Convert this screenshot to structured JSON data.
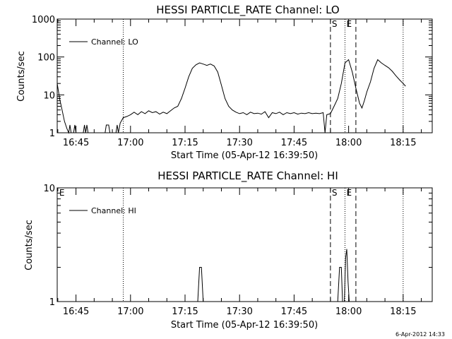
{
  "chart_data": [
    {
      "type": "line",
      "title": "HESSI PARTICLE_RATE Channel: LO",
      "xlabel": "Start Time (05-Apr-12 16:39:50)",
      "ylabel": "Counts/sec",
      "yscale": "log",
      "ylim": [
        1,
        1000
      ],
      "y_ticks": [
        "1",
        "10",
        "100",
        "1000"
      ],
      "xlim": [
        "16:39:50",
        "18:23:00"
      ],
      "x_ticks": [
        "16:45",
        "17:00",
        "17:15",
        "17:30",
        "17:45",
        "18:00",
        "18:15"
      ],
      "legend": {
        "entries": [
          "Channel: LO"
        ],
        "placement": "top-left"
      },
      "grid": false,
      "dotted_lines_x": [
        "16:58:00",
        "17:59:00",
        "18:15:00"
      ],
      "dashed_lines_x": [
        "17:55:00",
        "18:02:00"
      ],
      "markers": [
        {
          "label": "S",
          "x": "17:55:00"
        },
        {
          "label": "E",
          "x": "17:59:00"
        }
      ],
      "series": [
        {
          "name": "Channel: LO",
          "points": [
            [
              "16:39:50",
              20
            ],
            [
              "16:40:30",
              8
            ],
            [
              "16:41:10",
              4
            ],
            [
              "16:41:50",
              2
            ],
            [
              "16:42:30",
              1.3
            ],
            [
              "16:43:00",
              1
            ],
            [
              "16:43:20",
              1.6
            ],
            [
              "16:43:40",
              1
            ],
            [
              "16:44:20",
              1
            ],
            [
              "16:44:40",
              1.6
            ],
            [
              "16:45:00",
              1
            ],
            [
              "16:47:00",
              1
            ],
            [
              "16:47:20",
              1.6
            ],
            [
              "16:47:40",
              1
            ],
            [
              "16:48:00",
              1.6
            ],
            [
              "16:48:20",
              1
            ],
            [
              "16:53:00",
              1
            ],
            [
              "16:53:20",
              1.6
            ],
            [
              "16:54:00",
              1.6
            ],
            [
              "16:54:20",
              1
            ],
            [
              "16:56:00",
              1
            ],
            [
              "16:56:20",
              1.6
            ],
            [
              "16:56:40",
              1
            ],
            [
              "16:57:10",
              1.8
            ],
            [
              "16:58:00",
              2.5
            ],
            [
              "16:59:00",
              2.7
            ],
            [
              "17:00:00",
              3
            ],
            [
              "17:01:00",
              3.5
            ],
            [
              "17:02:00",
              3
            ],
            [
              "17:03:00",
              3.6
            ],
            [
              "17:04:00",
              3.2
            ],
            [
              "17:05:00",
              3.8
            ],
            [
              "17:06:00",
              3.4
            ],
            [
              "17:07:00",
              3.6
            ],
            [
              "17:08:00",
              3.1
            ],
            [
              "17:09:00",
              3.5
            ],
            [
              "17:10:00",
              3.2
            ],
            [
              "17:11:00",
              3.8
            ],
            [
              "17:12:00",
              4.5
            ],
            [
              "17:13:00",
              5
            ],
            [
              "17:14:00",
              8
            ],
            [
              "17:15:00",
              15
            ],
            [
              "17:16:00",
              30
            ],
            [
              "17:17:00",
              50
            ],
            [
              "17:18:00",
              62
            ],
            [
              "17:19:00",
              70
            ],
            [
              "17:20:00",
              65
            ],
            [
              "17:21:00",
              60
            ],
            [
              "17:22:00",
              65
            ],
            [
              "17:23:00",
              58
            ],
            [
              "17:24:00",
              40
            ],
            [
              "17:25:00",
              18
            ],
            [
              "17:26:00",
              8
            ],
            [
              "17:27:00",
              5
            ],
            [
              "17:28:00",
              4
            ],
            [
              "17:29:00",
              3.5
            ],
            [
              "17:30:00",
              3.2
            ],
            [
              "17:31:00",
              3.4
            ],
            [
              "17:32:00",
              3
            ],
            [
              "17:33:00",
              3.5
            ],
            [
              "17:34:00",
              3.2
            ],
            [
              "17:35:00",
              3.3
            ],
            [
              "17:36:00",
              3.1
            ],
            [
              "17:37:00",
              3.6
            ],
            [
              "17:38:00",
              2.5
            ],
            [
              "17:39:00",
              3.4
            ],
            [
              "17:40:00",
              3.2
            ],
            [
              "17:41:00",
              3.5
            ],
            [
              "17:42:00",
              3
            ],
            [
              "17:43:00",
              3.4
            ],
            [
              "17:44:00",
              3.2
            ],
            [
              "17:45:00",
              3.4
            ],
            [
              "17:46:00",
              3.1
            ],
            [
              "17:47:00",
              3.3
            ],
            [
              "17:48:00",
              3.2
            ],
            [
              "17:49:00",
              3.4
            ],
            [
              "17:50:00",
              3.2
            ],
            [
              "17:51:00",
              3.3
            ],
            [
              "17:52:00",
              3.2
            ],
            [
              "17:53:00",
              3.4
            ],
            [
              "17:53:30",
              1
            ],
            [
              "17:54:00",
              3
            ],
            [
              "17:55:00",
              3.2
            ],
            [
              "17:56:00",
              5
            ],
            [
              "17:57:00",
              8
            ],
            [
              "17:58:00",
              20
            ],
            [
              "17:59:00",
              70
            ],
            [
              "18:00:00",
              85
            ],
            [
              "18:01:00",
              40
            ],
            [
              "18:02:00",
              15
            ],
            [
              "18:03:00",
              6
            ],
            [
              "18:03:40",
              4.5
            ],
            [
              "18:04:20",
              7
            ],
            [
              "18:05:00",
              12
            ],
            [
              "18:06:00",
              22
            ],
            [
              "18:07:00",
              50
            ],
            [
              "18:08:00",
              85
            ],
            [
              "18:09:00",
              70
            ],
            [
              "18:10:00",
              60
            ],
            [
              "18:11:00",
              52
            ],
            [
              "18:12:00",
              42
            ],
            [
              "18:13:00",
              32
            ],
            [
              "18:14:00",
              25
            ],
            [
              "18:15:00",
              20
            ],
            [
              "18:15:40",
              17
            ]
          ]
        }
      ]
    },
    {
      "type": "line",
      "title": "HESSI PARTICLE_RATE Channel: HI",
      "xlabel": "Start Time (05-Apr-12 16:39:50)",
      "ylabel": "Counts/sec",
      "yscale": "log",
      "ylim": [
        1,
        10
      ],
      "y_ticks": [
        "1",
        "10"
      ],
      "xlim": [
        "16:39:50",
        "18:23:00"
      ],
      "x_ticks": [
        "16:45",
        "17:00",
        "17:15",
        "17:30",
        "17:45",
        "18:00",
        "18:15"
      ],
      "legend": {
        "entries": [
          "Channel: HI"
        ],
        "placement": "top-left"
      },
      "grid": false,
      "dotted_lines_x": [
        "16:58:00",
        "17:59:00",
        "18:15:00"
      ],
      "dashed_lines_x": [
        "17:55:00",
        "18:02:00"
      ],
      "markers": [
        {
          "label": "E",
          "x": "16:40:00"
        },
        {
          "label": "S",
          "x": "17:55:00"
        },
        {
          "label": "E",
          "x": "17:59:00"
        }
      ],
      "series": [
        {
          "name": "Channel: HI",
          "points": [
            [
              "16:39:50",
              1
            ],
            [
              "17:18:30",
              1
            ],
            [
              "17:19:00",
              2
            ],
            [
              "17:19:30",
              2
            ],
            [
              "17:20:00",
              1
            ],
            [
              "17:57:00",
              1
            ],
            [
              "17:57:30",
              2
            ],
            [
              "17:58:00",
              2
            ],
            [
              "17:58:20",
              1
            ],
            [
              "17:58:50",
              1
            ],
            [
              "17:59:10",
              2.4
            ],
            [
              "17:59:30",
              2.9
            ],
            [
              "17:59:50",
              1.5
            ],
            [
              "18:00:10",
              1
            ],
            [
              "18:23:00",
              1
            ]
          ]
        }
      ]
    }
  ],
  "footer": {
    "timestamp": "6-Apr-2012 14:33"
  }
}
